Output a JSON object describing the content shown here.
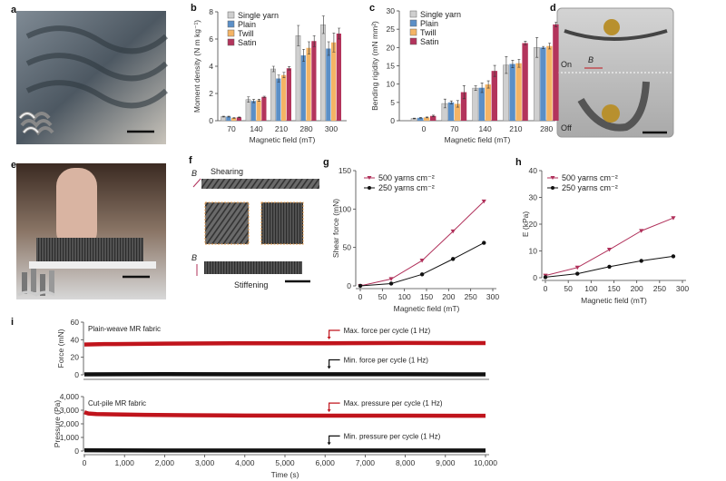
{
  "panel_labels": {
    "a": "a",
    "b": "b",
    "c": "c",
    "d": "d",
    "e": "e",
    "f": "f",
    "g": "g",
    "h": "h",
    "i": "i"
  },
  "photos": {
    "d_on": "On",
    "d_off": "Off",
    "d_field": "B",
    "f_top": "Shearing",
    "f_bottom": "Stiffening",
    "f_field_top": "B",
    "f_field_bottom": "B"
  },
  "colors": {
    "single": "#cfcfcf",
    "plain": "#5b8fc7",
    "twill": "#f4b465",
    "satin": "#b3345c",
    "red": "#c0141c",
    "maroon": "#b0305a",
    "black": "#111111"
  },
  "chart_data": [
    {
      "id": "b",
      "type": "bar",
      "xlabel": "Magnetic field (mT)",
      "ylabel": "Moment density (N m kg⁻¹)",
      "categories": [
        "70",
        "140",
        "210",
        "280",
        "300"
      ],
      "ylim": [
        0,
        8
      ],
      "yticks": [
        0,
        2,
        4,
        6,
        8
      ],
      "legend": "top-left",
      "series": [
        {
          "name": "Single yarn",
          "color_key": "single",
          "values": [
            0.3,
            1.55,
            3.8,
            6.25,
            7.05
          ],
          "errors": [
            0.03,
            0.2,
            0.2,
            0.75,
            0.65
          ]
        },
        {
          "name": "Plain",
          "color_key": "plain",
          "values": [
            0.3,
            1.45,
            3.1,
            4.8,
            5.3
          ],
          "errors": [
            0.03,
            0.12,
            0.25,
            0.45,
            0.5
          ]
        },
        {
          "name": "Twill",
          "color_key": "twill",
          "values": [
            0.2,
            1.5,
            3.35,
            5.35,
            5.75
          ],
          "errors": [
            0.02,
            0.08,
            0.2,
            0.45,
            0.7
          ]
        },
        {
          "name": "Satin",
          "color_key": "satin",
          "values": [
            0.25,
            1.75,
            3.85,
            5.85,
            6.4
          ],
          "errors": [
            0.02,
            0.05,
            0.12,
            0.4,
            0.4
          ]
        }
      ]
    },
    {
      "id": "c",
      "type": "bar",
      "xlabel": "Magnetic field (mT)",
      "ylabel": "Bending rigidity (mN mm²)",
      "categories": [
        "0",
        "70",
        "140",
        "210",
        "280"
      ],
      "ylim": [
        0,
        30
      ],
      "yticks": [
        0,
        5,
        10,
        15,
        20,
        25,
        30
      ],
      "legend": "top-left",
      "series": [
        {
          "name": "Single yarn",
          "color_key": "single",
          "values": [
            0.6,
            4.7,
            8.9,
            15.2,
            20.0
          ],
          "errors": [
            0.1,
            1.2,
            0.6,
            2.3,
            2.7
          ]
        },
        {
          "name": "Plain",
          "color_key": "plain",
          "values": [
            0.8,
            5.0,
            9.0,
            15.5,
            20.0
          ],
          "errors": [
            0.1,
            0.4,
            1.3,
            1.0,
            0.3
          ]
        },
        {
          "name": "Twill",
          "color_key": "twill",
          "values": [
            0.9,
            4.6,
            9.9,
            15.7,
            20.4
          ],
          "errors": [
            0.1,
            0.9,
            1.0,
            1.1,
            0.8
          ]
        },
        {
          "name": "Satin",
          "color_key": "satin",
          "values": [
            1.3,
            7.8,
            13.6,
            21.2,
            26.3
          ],
          "errors": [
            0.2,
            1.8,
            1.5,
            0.5,
            0.6
          ]
        }
      ]
    },
    {
      "id": "g",
      "type": "line",
      "xlabel": "Magnetic field (mT)",
      "ylabel": "Shear force (mN)",
      "xlim": [
        0,
        300
      ],
      "xticks": [
        0,
        50,
        100,
        150,
        200,
        250,
        300
      ],
      "ylim": [
        0,
        150
      ],
      "yticks": [
        0,
        50,
        100,
        150
      ],
      "legend": "top-left",
      "series": [
        {
          "name": "500 yarns cm⁻²",
          "color_key": "maroon",
          "marker": "triangle-down",
          "x": [
            0,
            70,
            140,
            210,
            280
          ],
          "y": [
            0,
            9,
            33,
            71,
            110
          ]
        },
        {
          "name": "250 yarns cm⁻²",
          "color_key": "black",
          "marker": "circle",
          "x": [
            0,
            70,
            140,
            210,
            280
          ],
          "y": [
            0,
            3,
            15,
            35,
            56
          ]
        }
      ]
    },
    {
      "id": "h",
      "type": "line",
      "xlabel": "Magnetic field (mT)",
      "ylabel": "E (kPa)",
      "xlim": [
        0,
        300
      ],
      "xticks": [
        0,
        50,
        100,
        150,
        200,
        250,
        300
      ],
      "ylim": [
        0,
        40
      ],
      "yticks": [
        0,
        10,
        20,
        30,
        40
      ],
      "legend": "top-left",
      "series": [
        {
          "name": "500 yarns cm⁻²",
          "color_key": "maroon",
          "marker": "triangle-down",
          "x": [
            0,
            70,
            140,
            210,
            280
          ],
          "y": [
            0.8,
            3.8,
            10.5,
            17.5,
            22.3
          ]
        },
        {
          "name": "250 yarns cm⁻²",
          "color_key": "black",
          "marker": "circle",
          "x": [
            0,
            70,
            140,
            210,
            280
          ],
          "y": [
            0.2,
            1.5,
            4.1,
            6.3,
            8.0
          ]
        }
      ]
    },
    {
      "id": "i-force",
      "type": "line",
      "title": "Plain-weave MR fabric",
      "ylabel": "Force (mN)",
      "xlim": [
        0,
        10000
      ],
      "ylim": [
        0,
        60
      ],
      "yticks": [
        0,
        20,
        40,
        60
      ],
      "series": [
        {
          "name": "Max. force per cycle (1 Hz)",
          "color_key": "red",
          "x": [
            0,
            500,
            2000,
            4000,
            6000,
            8000,
            10000
          ],
          "y": [
            34.5,
            35,
            35.5,
            36,
            36,
            36.3,
            36.2
          ]
        },
        {
          "name": "Min. force per cycle (1 Hz)",
          "color_key": "black",
          "x": [
            0,
            2000,
            4000,
            6000,
            8000,
            10000
          ],
          "y": [
            0.5,
            0.8,
            0.6,
            0.7,
            0.6,
            0.5
          ]
        }
      ],
      "annotation_x": 6100
    },
    {
      "id": "i-pressure",
      "type": "line",
      "title": "Cut-pile MR fabric",
      "ylabel": "Pressure (Pa)",
      "xlabel": "Time (s)",
      "xlim": [
        0,
        10000
      ],
      "xticks": [
        0,
        1000,
        2000,
        3000,
        4000,
        5000,
        6000,
        7000,
        8000,
        9000,
        10000
      ],
      "xticklabels": [
        "0",
        "1,000",
        "2,000",
        "3,000",
        "4,000",
        "5,000",
        "6,000",
        "7,000",
        "8,000",
        "9,000",
        "10,000"
      ],
      "ylim": [
        0,
        4000
      ],
      "yticks": [
        0,
        1000,
        2000,
        3000,
        4000
      ],
      "yticklabels": [
        "0",
        "1,000",
        "2,000",
        "3,000",
        "4,000"
      ],
      "series": [
        {
          "name": "Max. pressure per cycle (1 Hz)",
          "color_key": "red",
          "x": [
            0,
            100,
            300,
            800,
            1500,
            2500,
            4000,
            6000,
            8000,
            10000
          ],
          "y": [
            2850,
            2760,
            2720,
            2690,
            2660,
            2630,
            2610,
            2600,
            2600,
            2590
          ]
        },
        {
          "name": "Min. pressure per cycle (1 Hz)",
          "color_key": "black",
          "x": [
            0,
            2000,
            4000,
            6000,
            8000,
            10000
          ],
          "y": [
            60,
            40,
            40,
            40,
            40,
            40
          ]
        }
      ],
      "annotation_x": 6100
    }
  ]
}
